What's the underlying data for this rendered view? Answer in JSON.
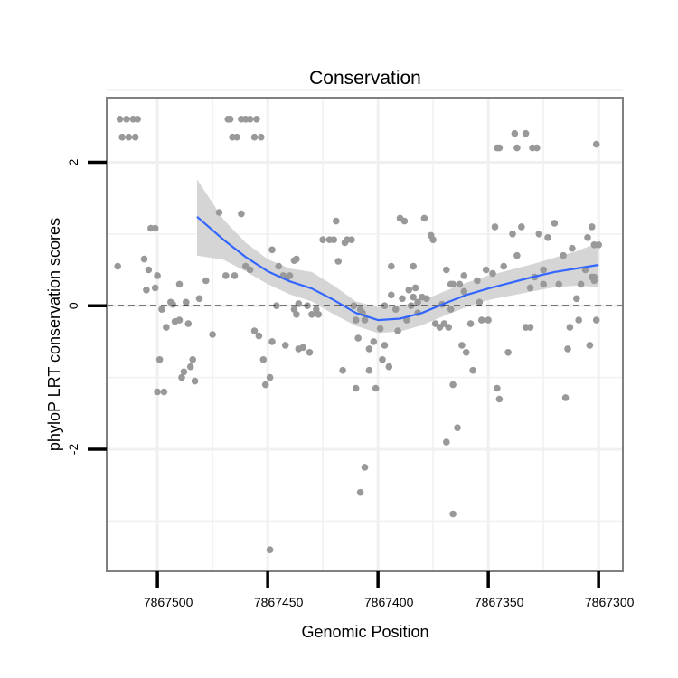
{
  "chart_data": {
    "type": "scatter",
    "title": "Conservation",
    "xlabel": "Genomic Position",
    "ylabel": "phyloP LRT conservation scores",
    "x_reversed": true,
    "xlim": [
      7867523,
      7867289
    ],
    "ylim": [
      -3.7,
      2.9
    ],
    "xticks": [
      7867500,
      7867450,
      7867400,
      7867350,
      7867300
    ],
    "xtick_labels": [
      "7867500",
      "7867450",
      "7867400",
      "7867350",
      "7867300"
    ],
    "yticks": [
      2,
      0,
      -2
    ],
    "ytick_labels": [
      "2",
      "0",
      "-2"
    ],
    "reference_line": {
      "y": 0,
      "style": "dashed"
    },
    "colors": {
      "points": "#999999",
      "smooth": "#3366ff",
      "ribbon": "#d0d0d0",
      "panel_border": "#808080",
      "grid": "#f0f0f0"
    },
    "points": [
      [
        7867517,
        2.6
      ],
      [
        7867516,
        2.35
      ],
      [
        7867514,
        2.6
      ],
      [
        7867513,
        2.35
      ],
      [
        7867511,
        2.6
      ],
      [
        7867510,
        2.35
      ],
      [
        7867509,
        2.6
      ],
      [
        7867468,
        2.6
      ],
      [
        7867467,
        2.6
      ],
      [
        7867466,
        2.35
      ],
      [
        7867464,
        2.35
      ],
      [
        7867462,
        2.6
      ],
      [
        7867460,
        2.6
      ],
      [
        7867458,
        2.6
      ],
      [
        7867456,
        2.35
      ],
      [
        7867455,
        2.6
      ],
      [
        7867453,
        2.35
      ],
      [
        7867346,
        2.2
      ],
      [
        7867345,
        2.2
      ],
      [
        7867338,
        2.4
      ],
      [
        7867337,
        2.2
      ],
      [
        7867333,
        2.4
      ],
      [
        7867330,
        2.2
      ],
      [
        7867328,
        2.2
      ],
      [
        7867301,
        2.25
      ],
      [
        7867518,
        0.55
      ],
      [
        7867506,
        0.65
      ],
      [
        7867505,
        0.22
      ],
      [
        7867504,
        0.5
      ],
      [
        7867503,
        1.08
      ],
      [
        7867501,
        1.08
      ],
      [
        7867500,
        0.42
      ],
      [
        7867501,
        0.25
      ],
      [
        7867499,
        -0.75
      ],
      [
        7867500,
        -1.2
      ],
      [
        7867497,
        -1.2
      ],
      [
        7867498,
        -0.05
      ],
      [
        7867496,
        -0.3
      ],
      [
        7867494,
        0.05
      ],
      [
        7867492,
        -0.22
      ],
      [
        7867493,
        0.02
      ],
      [
        7867490,
        0.3
      ],
      [
        7867490,
        -0.2
      ],
      [
        7867488,
        -0.92
      ],
      [
        7867489,
        -1.0
      ],
      [
        7867487,
        0.05
      ],
      [
        7867486,
        -0.25
      ],
      [
        7867485,
        -0.85
      ],
      [
        7867484,
        -0.75
      ],
      [
        7867483,
        -1.05
      ],
      [
        7867481,
        0.1
      ],
      [
        7867478,
        0.35
      ],
      [
        7867475,
        -0.4
      ],
      [
        7867472,
        1.3
      ],
      [
        7867469,
        0.42
      ],
      [
        7867465,
        0.42
      ],
      [
        7867462,
        1.28
      ],
      [
        7867460,
        0.55
      ],
      [
        7867458,
        0.5
      ],
      [
        7867456,
        -0.35
      ],
      [
        7867454,
        -0.42
      ],
      [
        7867452,
        -0.75
      ],
      [
        7867451,
        -1.1
      ],
      [
        7867449,
        -1.0
      ],
      [
        7867448,
        -0.5
      ],
      [
        7867446,
        0.0
      ],
      [
        7867445,
        0.55
      ],
      [
        7867448,
        0.78
      ],
      [
        7867443,
        0.42
      ],
      [
        7867441,
        0.4
      ],
      [
        7867440,
        0.42
      ],
      [
        7867442,
        -0.55
      ],
      [
        7867438,
        0.63
      ],
      [
        7867437,
        0.65
      ],
      [
        7867436,
        -0.6
      ],
      [
        7867434,
        -0.58
      ],
      [
        7867432,
        0.0
      ],
      [
        7867431,
        -0.65
      ],
      [
        7867430,
        -0.12
      ],
      [
        7867428,
        -0.05
      ],
      [
        7867427,
        -0.12
      ],
      [
        7867425,
        0.92
      ],
      [
        7867422,
        0.92
      ],
      [
        7867420,
        0.92
      ],
      [
        7867419,
        1.18
      ],
      [
        7867418,
        0.62
      ],
      [
        7867416,
        -0.9
      ],
      [
        7867415,
        0.88
      ],
      [
        7867414,
        0.92
      ],
      [
        7867412,
        0.92
      ],
      [
        7867411,
        0.0
      ],
      [
        7867410,
        -0.2
      ],
      [
        7867409,
        -0.45
      ],
      [
        7867408,
        -0.05
      ],
      [
        7867407,
        -0.1
      ],
      [
        7867406,
        -0.2
      ],
      [
        7867404,
        -0.6
      ],
      [
        7867402,
        -0.5
      ],
      [
        7867401,
        -1.15
      ],
      [
        7867399,
        -0.32
      ],
      [
        7867398,
        -0.75
      ],
      [
        7867395,
        -0.85
      ],
      [
        7867394,
        0.55
      ],
      [
        7867392,
        -0.05
      ],
      [
        7867390,
        1.22
      ],
      [
        7867388,
        1.18
      ],
      [
        7867387,
        -0.2
      ],
      [
        7867385,
        0.0
      ],
      [
        7867384,
        0.12
      ],
      [
        7867382,
        -0.1
      ],
      [
        7867380,
        0.12
      ],
      [
        7867379,
        1.22
      ],
      [
        7867378,
        0.1
      ],
      [
        7867376,
        0.98
      ],
      [
        7867375,
        0.92
      ],
      [
        7867374,
        -0.25
      ],
      [
        7867372,
        -0.3
      ],
      [
        7867370,
        -0.25
      ],
      [
        7867368,
        -0.3
      ],
      [
        7867366,
        -1.1
      ],
      [
        7867364,
        -1.7
      ],
      [
        7867363,
        0.3
      ],
      [
        7867361,
        0.2
      ],
      [
        7867360,
        -0.65
      ],
      [
        7867358,
        -0.25
      ],
      [
        7867357,
        -0.9
      ],
      [
        7867355,
        0.35
      ],
      [
        7867354,
        0.05
      ],
      [
        7867353,
        -0.2
      ],
      [
        7867351,
        0.5
      ],
      [
        7867350,
        -0.2
      ],
      [
        7867348,
        0.45
      ],
      [
        7867347,
        1.1
      ],
      [
        7867346,
        -1.15
      ],
      [
        7867345,
        -1.3
      ],
      [
        7867343,
        0.55
      ],
      [
        7867341,
        -0.65
      ],
      [
        7867339,
        1.0
      ],
      [
        7867337,
        0.7
      ],
      [
        7867335,
        1.1
      ],
      [
        7867333,
        -0.3
      ],
      [
        7867331,
        0.25
      ],
      [
        7867329,
        0.4
      ],
      [
        7867327,
        1.0
      ],
      [
        7867325,
        0.3
      ],
      [
        7867323,
        0.95
      ],
      [
        7867320,
        1.15
      ],
      [
        7867318,
        0.3
      ],
      [
        7867316,
        0.7
      ],
      [
        7867314,
        -0.6
      ],
      [
        7867312,
        0.8
      ],
      [
        7867310,
        0.1
      ],
      [
        7867308,
        0.3
      ],
      [
        7867306,
        0.5
      ],
      [
        7867305,
        0.95
      ],
      [
        7867302,
        0.85
      ],
      [
        7867302,
        0.4
      ],
      [
        7867313,
        -0.3
      ],
      [
        7867304,
        -0.55
      ],
      [
        7867303,
        0.4
      ],
      [
        7867303,
        1.1
      ],
      [
        7867301,
        -0.2
      ],
      [
        7867300,
        0.85
      ],
      [
        7867302,
        0.35
      ],
      [
        7867315,
        -1.28
      ],
      [
        7867325,
        0.5
      ],
      [
        7867331,
        -0.3
      ],
      [
        7867309,
        -0.2
      ],
      [
        7867394,
        0.15
      ],
      [
        7867397,
        0.0
      ],
      [
        7867389,
        0.1
      ],
      [
        7867383,
        0.25
      ],
      [
        7867371,
        0.02
      ],
      [
        7867367,
        -0.05
      ],
      [
        7867367,
        0.3
      ],
      [
        7867366,
        0.3
      ],
      [
        7867369,
        0.5
      ],
      [
        7867361,
        0.42
      ],
      [
        7867382,
        0.05
      ],
      [
        7867386,
        0.22
      ],
      [
        7867391,
        -0.35
      ],
      [
        7867397,
        -0.55
      ],
      [
        7867404,
        -0.9
      ],
      [
        7867369,
        -1.9
      ],
      [
        7867362,
        -0.55
      ],
      [
        7867384,
        0.55
      ],
      [
        7867410,
        -1.15
      ],
      [
        7867406,
        -2.25
      ],
      [
        7867408,
        -2.6
      ],
      [
        7867366,
        -2.9
      ],
      [
        7867436,
        0.03
      ],
      [
        7867438,
        -0.05
      ],
      [
        7867437,
        -0.12
      ],
      [
        7867449,
        -3.4
      ]
    ],
    "smooth": {
      "x": [
        7867482,
        7867470,
        7867460,
        7867450,
        7867440,
        7867430,
        7867420,
        7867410,
        7867400,
        7867390,
        7867380,
        7867370,
        7867360,
        7867350,
        7867340,
        7867330,
        7867320,
        7867310,
        7867300
      ],
      "y": [
        1.24,
        0.92,
        0.68,
        0.48,
        0.34,
        0.24,
        0.08,
        -0.1,
        -0.2,
        -0.18,
        -0.1,
        0.03,
        0.15,
        0.24,
        0.32,
        0.4,
        0.47,
        0.52,
        0.57
      ],
      "upper": [
        1.76,
        1.2,
        0.88,
        0.65,
        0.52,
        0.47,
        0.28,
        0.06,
        -0.02,
        0.0,
        0.07,
        0.2,
        0.32,
        0.42,
        0.5,
        0.58,
        0.67,
        0.76,
        0.88
      ],
      "lower": [
        0.7,
        0.64,
        0.48,
        0.3,
        0.16,
        0.06,
        -0.12,
        -0.28,
        -0.38,
        -0.36,
        -0.27,
        -0.14,
        -0.02,
        0.08,
        0.14,
        0.2,
        0.26,
        0.28,
        0.26
      ]
    }
  }
}
